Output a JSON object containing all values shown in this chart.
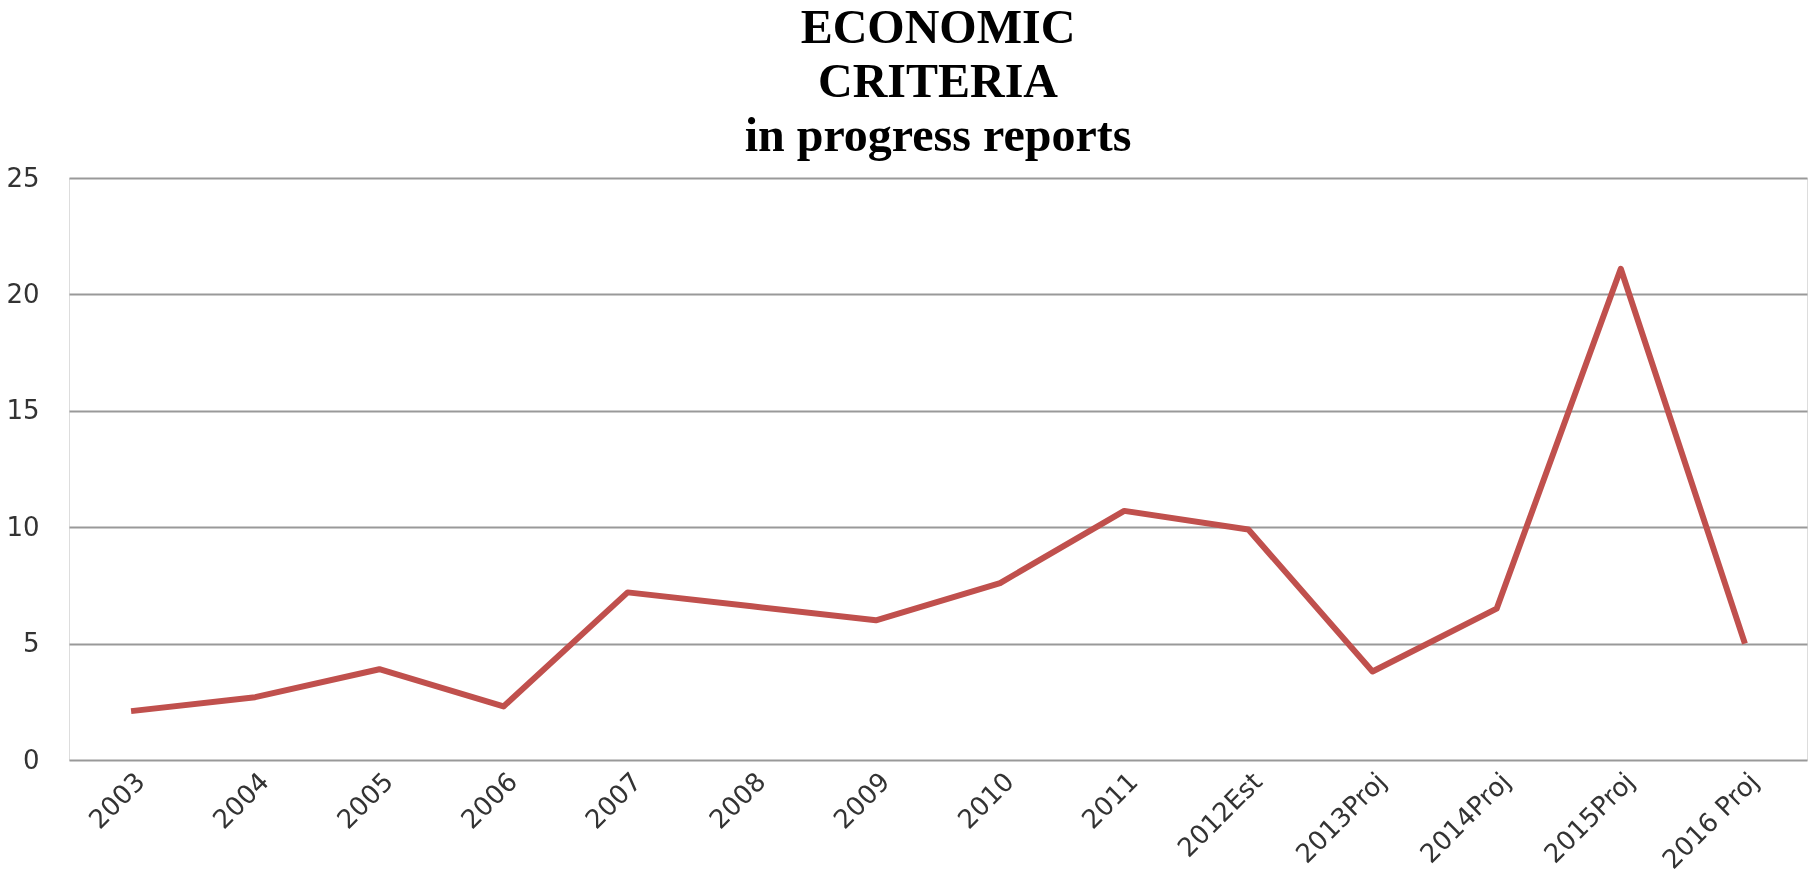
{
  "chart_data": {
    "type": "line",
    "title": "ECONOMIC\nCRITERIA\nin progress reports",
    "categories": [
      "2003",
      "2004",
      "2005",
      "2006",
      "2007",
      "2008",
      "2009",
      "2010",
      "2011",
      "2012Est",
      "2013Proj",
      "2014Proj",
      "2015Proj",
      "2016 Proj"
    ],
    "series": [
      {
        "color": "#c0504d",
        "values": [
          2.1,
          2.7,
          3.9,
          2.3,
          7.2,
          6.6,
          6.0,
          7.6,
          10.7,
          9.9,
          3.8,
          6.5,
          21.1,
          5.0
        ]
      }
    ],
    "ylim": [
      0,
      25
    ],
    "yticks": [
      0,
      5,
      10,
      15,
      20,
      25
    ],
    "grid": "y",
    "legend": false,
    "marker": "none",
    "line_style": "solid"
  }
}
